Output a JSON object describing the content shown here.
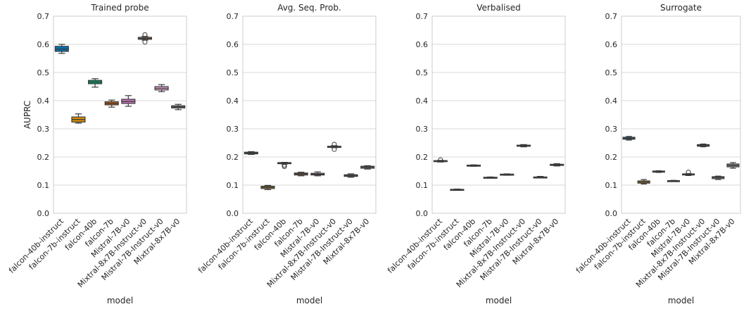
{
  "chart_data": [
    {
      "type": "box",
      "title": "Trained probe",
      "xlabel": "model",
      "ylabel": "AUPRC",
      "ylim": [
        0,
        0.7
      ],
      "yticks": [
        "0.0",
        "0.1",
        "0.2",
        "0.3",
        "0.4",
        "0.5",
        "0.6",
        "0.7"
      ],
      "grid": true,
      "categories": [
        "falcon-40b-instruct",
        "falcon-7b-instruct",
        "falcon-40b",
        "falcon-7b",
        "Mistral-7B-v0",
        "Mixtral-8x7B-Instruct-v0",
        "Mistral-7B-Instruct-v0",
        "Mixtral-8x7B-v0"
      ],
      "boxes": [
        {
          "min": 0.568,
          "q1": 0.575,
          "median": 0.583,
          "q3": 0.593,
          "max": 0.6,
          "outliers": []
        },
        {
          "min": 0.32,
          "q1": 0.324,
          "median": 0.333,
          "q3": 0.342,
          "max": 0.353,
          "outliers": []
        },
        {
          "min": 0.448,
          "q1": 0.46,
          "median": 0.466,
          "q3": 0.472,
          "max": 0.478,
          "outliers": []
        },
        {
          "min": 0.377,
          "q1": 0.385,
          "median": 0.39,
          "q3": 0.396,
          "max": 0.402,
          "outliers": []
        },
        {
          "min": 0.38,
          "q1": 0.39,
          "median": 0.397,
          "q3": 0.405,
          "max": 0.418,
          "outliers": []
        },
        {
          "min": 0.615,
          "q1": 0.618,
          "median": 0.621,
          "q3": 0.625,
          "max": 0.628,
          "outliers": [
            0.608,
            0.634
          ]
        },
        {
          "min": 0.432,
          "q1": 0.438,
          "median": 0.444,
          "q3": 0.45,
          "max": 0.457,
          "outliers": []
        },
        {
          "min": 0.368,
          "q1": 0.374,
          "median": 0.378,
          "q3": 0.382,
          "max": 0.387,
          "outliers": []
        }
      ]
    },
    {
      "type": "box",
      "title": "Avg. Seq. Prob.",
      "xlabel": "model",
      "ylabel": "",
      "ylim": [
        0,
        0.7
      ],
      "yticks": [
        "0.0",
        "0.1",
        "0.2",
        "0.3",
        "0.4",
        "0.5",
        "0.6",
        "0.7"
      ],
      "grid": true,
      "categories": [
        "falcon-40b-instruct",
        "falcon-7b-instruct",
        "falcon-40b",
        "falcon-7b",
        "Mistral-7B-v0",
        "Mixtral-8x7B-Instruct-v0",
        "Mistral-7B-Instruct-v0",
        "Mixtral-8x7B-v0"
      ],
      "boxes": [
        {
          "min": 0.209,
          "q1": 0.211,
          "median": 0.214,
          "q3": 0.217,
          "max": 0.219,
          "outliers": []
        },
        {
          "min": 0.084,
          "q1": 0.088,
          "median": 0.092,
          "q3": 0.096,
          "max": 0.099,
          "outliers": []
        },
        {
          "min": 0.175,
          "q1": 0.176,
          "median": 0.178,
          "q3": 0.18,
          "max": 0.181,
          "outliers": [
            0.166,
            0.171
          ]
        },
        {
          "min": 0.133,
          "q1": 0.136,
          "median": 0.14,
          "q3": 0.143,
          "max": 0.146,
          "outliers": []
        },
        {
          "min": 0.133,
          "q1": 0.136,
          "median": 0.139,
          "q3": 0.142,
          "max": 0.147,
          "outliers": []
        },
        {
          "min": 0.233,
          "q1": 0.234,
          "median": 0.236,
          "q3": 0.238,
          "max": 0.24,
          "outliers": [
            0.227,
            0.245
          ]
        },
        {
          "min": 0.128,
          "q1": 0.131,
          "median": 0.134,
          "q3": 0.137,
          "max": 0.14,
          "outliers": []
        },
        {
          "min": 0.157,
          "q1": 0.16,
          "median": 0.164,
          "q3": 0.167,
          "max": 0.169,
          "outliers": []
        }
      ]
    },
    {
      "type": "box",
      "title": "Verbalised",
      "xlabel": "model",
      "ylabel": "",
      "ylim": [
        0,
        0.7
      ],
      "yticks": [
        "0.0",
        "0.1",
        "0.2",
        "0.3",
        "0.4",
        "0.5",
        "0.6",
        "0.7"
      ],
      "grid": true,
      "categories": [
        "falcon-40b-instruct",
        "falcon-7b-instruct",
        "falcon-40b",
        "falcon-7b",
        "Mistral-7B-v0",
        "Mixtral-8x7B-Instruct-v0",
        "Mistral-7B-Instruct-v0",
        "Mixtral-8x7B-v0"
      ],
      "boxes": [
        {
          "min": 0.182,
          "q1": 0.184,
          "median": 0.186,
          "q3": 0.187,
          "max": 0.188,
          "outliers": [
            0.19
          ]
        },
        {
          "min": 0.082,
          "q1": 0.083,
          "median": 0.084,
          "q3": 0.085,
          "max": 0.086,
          "outliers": []
        },
        {
          "min": 0.167,
          "q1": 0.168,
          "median": 0.169,
          "q3": 0.171,
          "max": 0.172,
          "outliers": []
        },
        {
          "min": 0.125,
          "q1": 0.126,
          "median": 0.127,
          "q3": 0.128,
          "max": 0.129,
          "outliers": []
        },
        {
          "min": 0.135,
          "q1": 0.136,
          "median": 0.138,
          "q3": 0.139,
          "max": 0.14,
          "outliers": []
        },
        {
          "min": 0.236,
          "q1": 0.238,
          "median": 0.24,
          "q3": 0.242,
          "max": 0.244,
          "outliers": []
        },
        {
          "min": 0.126,
          "q1": 0.127,
          "median": 0.128,
          "q3": 0.129,
          "max": 0.131,
          "outliers": []
        },
        {
          "min": 0.168,
          "q1": 0.17,
          "median": 0.172,
          "q3": 0.174,
          "max": 0.176,
          "outliers": []
        }
      ]
    },
    {
      "type": "box",
      "title": "Surrogate",
      "xlabel": "model",
      "ylabel": "",
      "ylim": [
        0,
        0.7
      ],
      "yticks": [
        "0.0",
        "0.1",
        "0.2",
        "0.3",
        "0.4",
        "0.5",
        "0.6",
        "0.7"
      ],
      "grid": true,
      "categories": [
        "falcon-40b-instruct",
        "falcon-7b-instruct",
        "falcon-40b",
        "falcon-7b",
        "Mistral-7B-v0",
        "Mixtral-8x7B-Instruct-v0",
        "Mistral-7B-Instruct-v0",
        "Mixtral-8x7B-v0"
      ],
      "boxes": [
        {
          "min": 0.26,
          "q1": 0.263,
          "median": 0.266,
          "q3": 0.27,
          "max": 0.273,
          "outliers": []
        },
        {
          "min": 0.104,
          "q1": 0.107,
          "median": 0.111,
          "q3": 0.115,
          "max": 0.12,
          "outliers": []
        },
        {
          "min": 0.145,
          "q1": 0.146,
          "median": 0.148,
          "q3": 0.15,
          "max": 0.151,
          "outliers": []
        },
        {
          "min": 0.113,
          "q1": 0.114,
          "median": 0.115,
          "q3": 0.116,
          "max": 0.117,
          "outliers": []
        },
        {
          "min": 0.134,
          "q1": 0.136,
          "median": 0.138,
          "q3": 0.14,
          "max": 0.141,
          "outliers": [
            0.146
          ]
        },
        {
          "min": 0.236,
          "q1": 0.238,
          "median": 0.241,
          "q3": 0.244,
          "max": 0.246,
          "outliers": []
        },
        {
          "min": 0.12,
          "q1": 0.123,
          "median": 0.127,
          "q3": 0.13,
          "max": 0.132,
          "outliers": []
        },
        {
          "min": 0.16,
          "q1": 0.165,
          "median": 0.17,
          "q3": 0.175,
          "max": 0.18,
          "outliers": []
        }
      ]
    }
  ],
  "palette": [
    "#0173b2",
    "#de8f05",
    "#029e73",
    "#d55e00",
    "#cc78bc",
    "#ca9161",
    "#fbafe4",
    "#949494"
  ],
  "colors": {
    "grid": "#d9d9d9",
    "spine": "#cccccc",
    "line": "#3a3a3a",
    "text": "#262626"
  }
}
